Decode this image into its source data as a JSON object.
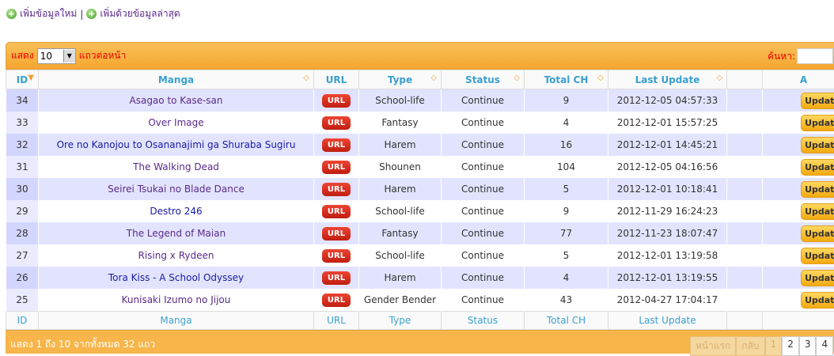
{
  "top_links": {
    "add_new": "เพิ่มข้อมูลใหม่",
    "separator": "|",
    "add_latest": "เพิ่มด้วยข้อมูลล่าสุด"
  },
  "toolbar": {
    "show_label": "แสดง",
    "page_size": "10",
    "per_page_label": "แถวต่อหน้า",
    "search_label": "ค้นหา:",
    "search_value": ""
  },
  "columns": [
    "ID",
    "Manga",
    "URL",
    "Type",
    "Status",
    "Total CH",
    "Last Update",
    "",
    "A"
  ],
  "footer_columns": [
    "ID",
    "Manga",
    "URL",
    "Type",
    "Status",
    "Total CH",
    "Last Update",
    "",
    ""
  ],
  "url_label": "URL",
  "update_label": "Updat",
  "rows": [
    {
      "id": "34",
      "manga": "Asagao to Kase-san",
      "visited": true,
      "type": "School-life",
      "status": "Continue",
      "total": "9",
      "updated": "2012-12-05 04:57:33"
    },
    {
      "id": "33",
      "manga": "Over Image",
      "visited": true,
      "type": "Fantasy",
      "status": "Continue",
      "total": "4",
      "updated": "2012-12-01 15:57:25"
    },
    {
      "id": "32",
      "manga": "Ore no Kanojou to Osananajimi ga Shuraba Sugiru",
      "visited": false,
      "type": "Harem",
      "status": "Continue",
      "total": "16",
      "updated": "2012-12-01 14:45:21"
    },
    {
      "id": "31",
      "manga": "The Walking Dead",
      "visited": true,
      "type": "Shounen",
      "status": "Continue",
      "total": "104",
      "updated": "2012-12-05 04:16:56"
    },
    {
      "id": "30",
      "manga": "Seirei Tsukai no Blade Dance",
      "visited": true,
      "type": "Harem",
      "status": "Continue",
      "total": "5",
      "updated": "2012-12-01 10:18:41"
    },
    {
      "id": "29",
      "manga": "Destro 246",
      "visited": false,
      "type": "School-life",
      "status": "Continue",
      "total": "9",
      "updated": "2012-11-29 16:24:23"
    },
    {
      "id": "28",
      "manga": "The Legend of Maian",
      "visited": true,
      "type": "Fantasy",
      "status": "Continue",
      "total": "77",
      "updated": "2012-11-23 18:07:47"
    },
    {
      "id": "27",
      "manga": "Rising x Rydeen",
      "visited": true,
      "type": "School-life",
      "status": "Continue",
      "total": "5",
      "updated": "2012-12-01 13:19:58"
    },
    {
      "id": "26",
      "manga": "Tora Kiss - A School Odyssey",
      "visited": false,
      "type": "Harem",
      "status": "Continue",
      "total": "4",
      "updated": "2012-12-01 13:19:55"
    },
    {
      "id": "25",
      "manga": "Kunisaki Izumo no Jijou",
      "visited": true,
      "type": "Gender Bender",
      "status": "Continue",
      "total": "43",
      "updated": "2012-04-27 17:04:17"
    }
  ],
  "footer": {
    "info": "แสดง 1 ถึง 10 จากทั้งหมด 32 แถว",
    "pagination": {
      "first": "หน้าแรก",
      "prev": "กลับ",
      "pages": [
        "1",
        "2",
        "3",
        "4"
      ],
      "current": "1"
    }
  }
}
